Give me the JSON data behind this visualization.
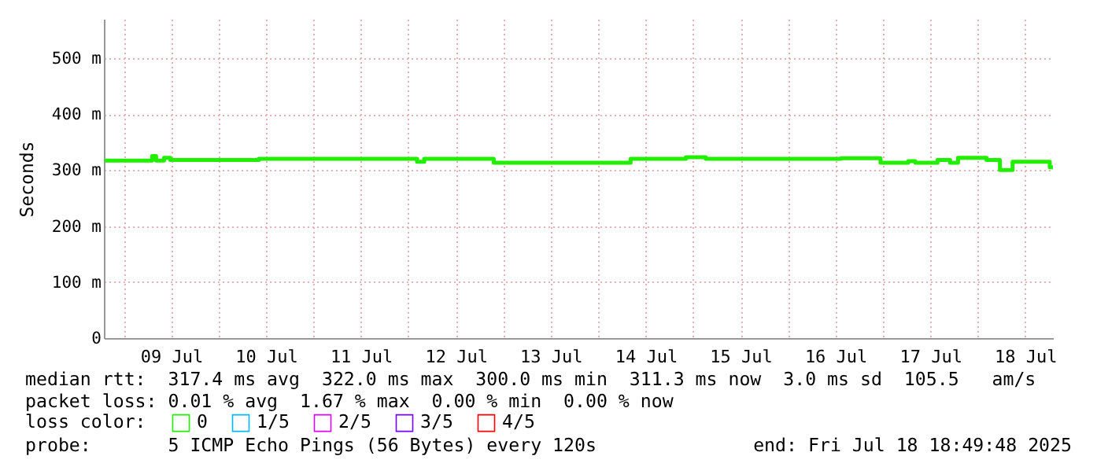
{
  "chart_data": {
    "type": "step",
    "ylabel": "Seconds",
    "x": [
      "2025-07-08T19:12",
      "2025-07-09T07:12",
      "2025-07-09T08:12",
      "2025-07-09T10:12",
      "2025-07-09T11:48",
      "2025-07-10T10:12",
      "2025-07-12T02:12",
      "2025-07-12T04:00",
      "2025-07-12T21:36",
      "2025-07-14T08:12",
      "2025-07-14T22:12",
      "2025-07-15T03:12",
      "2025-07-16T13:24",
      "2025-07-16T23:24",
      "2025-07-17T06:24",
      "2025-07-17T08:12",
      "2025-07-17T13:48",
      "2025-07-17T17:00",
      "2025-07-17T19:00",
      "2025-07-18T02:12",
      "2025-07-18T05:36",
      "2025-07-18T08:48",
      "2025-07-18T18:12",
      "2025-07-18T19:00"
    ],
    "series": [
      {
        "name": "0",
        "color": "#22ee00",
        "values": [
          317,
          325,
          317,
          322,
          318,
          320,
          315,
          320,
          313,
          320,
          323,
          320,
          321,
          313,
          316,
          313,
          318,
          313,
          322,
          318,
          300,
          315,
          305,
          305
        ]
      },
      {
        "name": "1/5",
        "color": "#00b8ff",
        "values": [
          null,
          null,
          null,
          null,
          null,
          null,
          null,
          null,
          null,
          null,
          null,
          null,
          null,
          null,
          null,
          null,
          null,
          null,
          null,
          null,
          null,
          null,
          null,
          null
        ]
      },
      {
        "name": "2/5",
        "color": "#dd00ff",
        "values": [
          null,
          null,
          null,
          null,
          null,
          null,
          null,
          null,
          null,
          null,
          null,
          null,
          null,
          null,
          null,
          null,
          null,
          null,
          null,
          null,
          null,
          null,
          null,
          null
        ]
      },
      {
        "name": "3/5",
        "color": "#7700ff",
        "values": [
          null,
          null,
          null,
          null,
          null,
          null,
          null,
          null,
          null,
          null,
          null,
          null,
          null,
          null,
          null,
          null,
          null,
          null,
          null,
          null,
          null,
          null,
          null,
          null
        ]
      },
      {
        "name": "4/5",
        "color": "#ff0000",
        "values": [
          null,
          null,
          null,
          null,
          null,
          null,
          null,
          null,
          null,
          null,
          null,
          null,
          null,
          null,
          null,
          null,
          null,
          null,
          null,
          null,
          null,
          null,
          null,
          null
        ]
      }
    ],
    "legend_title": "loss color:",
    "legend": "bottom left",
    "xlim": [
      "2025-07-08T19:00",
      "2025-07-18T19:00"
    ],
    "xticks": [
      {
        "value": "2025-07-09T00:00",
        "label": null
      },
      {
        "value": "2025-07-09T12:00",
        "label": "09 Jul"
      },
      {
        "value": "2025-07-10T00:00",
        "label": null
      },
      {
        "value": "2025-07-10T12:00",
        "label": "10 Jul"
      },
      {
        "value": "2025-07-11T00:00",
        "label": null
      },
      {
        "value": "2025-07-11T12:00",
        "label": "11 Jul"
      },
      {
        "value": "2025-07-12T00:00",
        "label": null
      },
      {
        "value": "2025-07-12T12:00",
        "label": "12 Jul"
      },
      {
        "value": "2025-07-13T00:00",
        "label": null
      },
      {
        "value": "2025-07-13T12:00",
        "label": "13 Jul"
      },
      {
        "value": "2025-07-14T00:00",
        "label": null
      },
      {
        "value": "2025-07-14T12:00",
        "label": "14 Jul"
      },
      {
        "value": "2025-07-15T00:00",
        "label": null
      },
      {
        "value": "2025-07-15T12:00",
        "label": "15 Jul"
      },
      {
        "value": "2025-07-16T00:00",
        "label": null
      },
      {
        "value": "2025-07-16T12:00",
        "label": "16 Jul"
      },
      {
        "value": "2025-07-17T00:00",
        "label": null
      },
      {
        "value": "2025-07-17T12:00",
        "label": "17 Jul"
      },
      {
        "value": "2025-07-18T00:00",
        "label": null
      },
      {
        "value": "2025-07-18T12:00",
        "label": "18 Jul"
      }
    ],
    "ylim": [
      0,
      570
    ],
    "yticks": [
      0,
      {
        "value": 100,
        "label": "100 m"
      },
      {
        "value": 200,
        "label": "200 m"
      },
      {
        "value": 300,
        "label": "300 m"
      },
      {
        "value": 400,
        "label": "400 m"
      },
      {
        "value": 500,
        "label": "500 m"
      }
    ],
    "grid": true,
    "annotations": [
      "median rtt:  317.4 ms avg  322.0 ms max  300.0 ms min  311.3 ms now  3.0 ms sd  105.5   am/s",
      "packet loss: 0.01 % avg  1.67 % max  0.00 % min  0.00 % now",
      "probe:       5 ICMP Echo Pings (56 Bytes) every 120s",
      "end: Fri Jul 18 18:49:48 2025"
    ]
  }
}
